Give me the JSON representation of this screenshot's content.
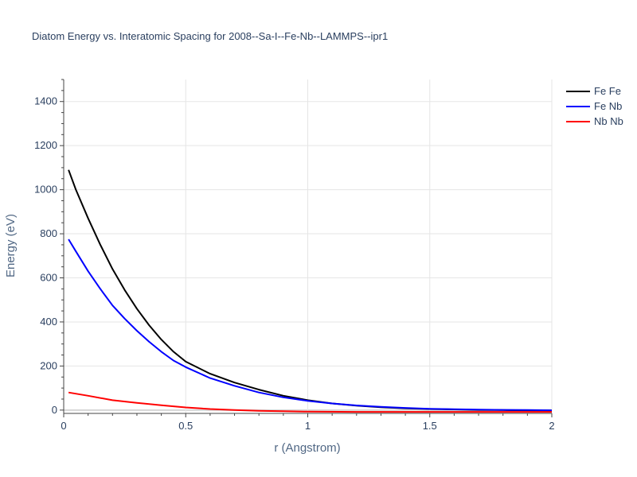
{
  "chart_data": {
    "type": "line",
    "title": "Diatom Energy vs. Interatomic Spacing for 2008--Sa-I--Fe-Nb--LAMMPS--ipr1",
    "xlabel": "r (Angstrom)",
    "ylabel": "Energy (eV)",
    "xlim": [
      0,
      2
    ],
    "ylim": [
      -15,
      1500
    ],
    "xticks": [
      0,
      0.5,
      1,
      1.5,
      2
    ],
    "xtick_labels": [
      "0",
      "0.5",
      "1",
      "1.5",
      "2"
    ],
    "yticks": [
      0,
      200,
      400,
      600,
      800,
      1000,
      1200,
      1400
    ],
    "ytick_labels": [
      "0",
      "200",
      "400",
      "600",
      "800",
      "1000",
      "1200",
      "1400"
    ],
    "grid": true,
    "legend_position": "top-right",
    "series": [
      {
        "name": "Fe Fe",
        "color": "#000000",
        "x": [
          0.02,
          0.05,
          0.1,
          0.15,
          0.2,
          0.25,
          0.3,
          0.35,
          0.4,
          0.45,
          0.5,
          0.6,
          0.7,
          0.8,
          0.9,
          1.0,
          1.1,
          1.2,
          1.3,
          1.4,
          1.5,
          1.6,
          1.7,
          1.8,
          1.9,
          2.0
        ],
        "y": [
          1090,
          1000,
          870,
          750,
          640,
          545,
          460,
          385,
          320,
          265,
          220,
          165,
          125,
          93,
          65,
          45,
          30,
          20,
          13,
          8,
          5,
          3,
          1,
          0,
          -1,
          -2
        ]
      },
      {
        "name": "Fe Nb",
        "color": "#0000ff",
        "x": [
          0.02,
          0.05,
          0.1,
          0.15,
          0.2,
          0.25,
          0.3,
          0.35,
          0.4,
          0.45,
          0.5,
          0.6,
          0.7,
          0.8,
          0.9,
          1.0,
          1.1,
          1.2,
          1.3,
          1.4,
          1.5,
          1.6,
          1.7,
          1.8,
          1.9,
          2.0
        ],
        "y": [
          775,
          720,
          630,
          550,
          475,
          415,
          360,
          310,
          265,
          225,
          195,
          145,
          110,
          80,
          58,
          42,
          30,
          21,
          15,
          10,
          6,
          4,
          2,
          1,
          0,
          -1
        ]
      },
      {
        "name": "Nb Nb",
        "color": "#ff0000",
        "x": [
          0.02,
          0.1,
          0.2,
          0.3,
          0.4,
          0.5,
          0.6,
          0.7,
          0.8,
          0.9,
          1.0,
          1.2,
          1.4,
          1.6,
          1.8,
          2.0
        ],
        "y": [
          80,
          65,
          45,
          33,
          22,
          12,
          5,
          0,
          -3,
          -5,
          -7,
          -8,
          -8,
          -8,
          -8,
          -8
        ]
      }
    ]
  }
}
